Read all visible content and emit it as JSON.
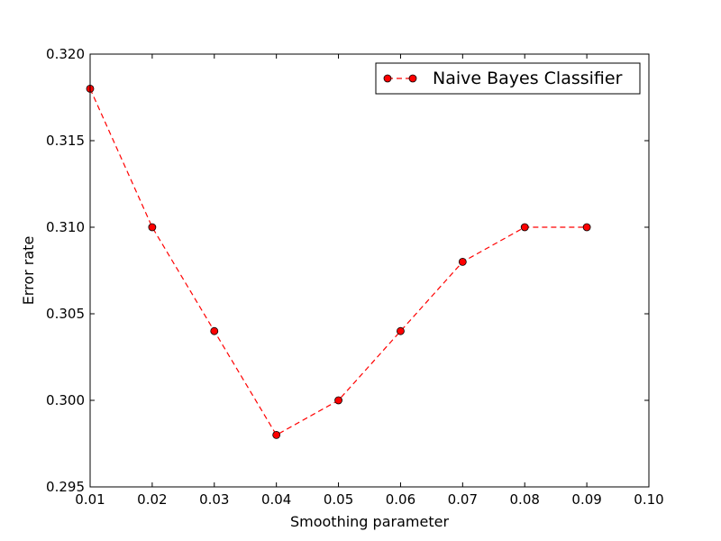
{
  "chart_data": {
    "type": "line",
    "xlabel": "Smoothing parameter",
    "ylabel": "Error rate",
    "xlim": [
      0.01,
      0.1
    ],
    "ylim": [
      0.295,
      0.32
    ],
    "xticks": [
      "0.01",
      "0.02",
      "0.03",
      "0.04",
      "0.05",
      "0.06",
      "0.07",
      "0.08",
      "0.09",
      "0.10"
    ],
    "yticks": [
      "0.295",
      "0.300",
      "0.305",
      "0.310",
      "0.315",
      "0.320"
    ],
    "grid": false,
    "legend_position": "top-right",
    "series": [
      {
        "name": "Naive Bayes Classifier",
        "color": "#ff0000",
        "line_style": "dashed",
        "marker": "circle",
        "x": [
          0.01,
          0.02,
          0.03,
          0.04,
          0.05,
          0.06,
          0.07,
          0.08,
          0.09
        ],
        "y": [
          0.318,
          0.31,
          0.304,
          0.298,
          0.3,
          0.304,
          0.308,
          0.31,
          0.31
        ]
      }
    ]
  }
}
